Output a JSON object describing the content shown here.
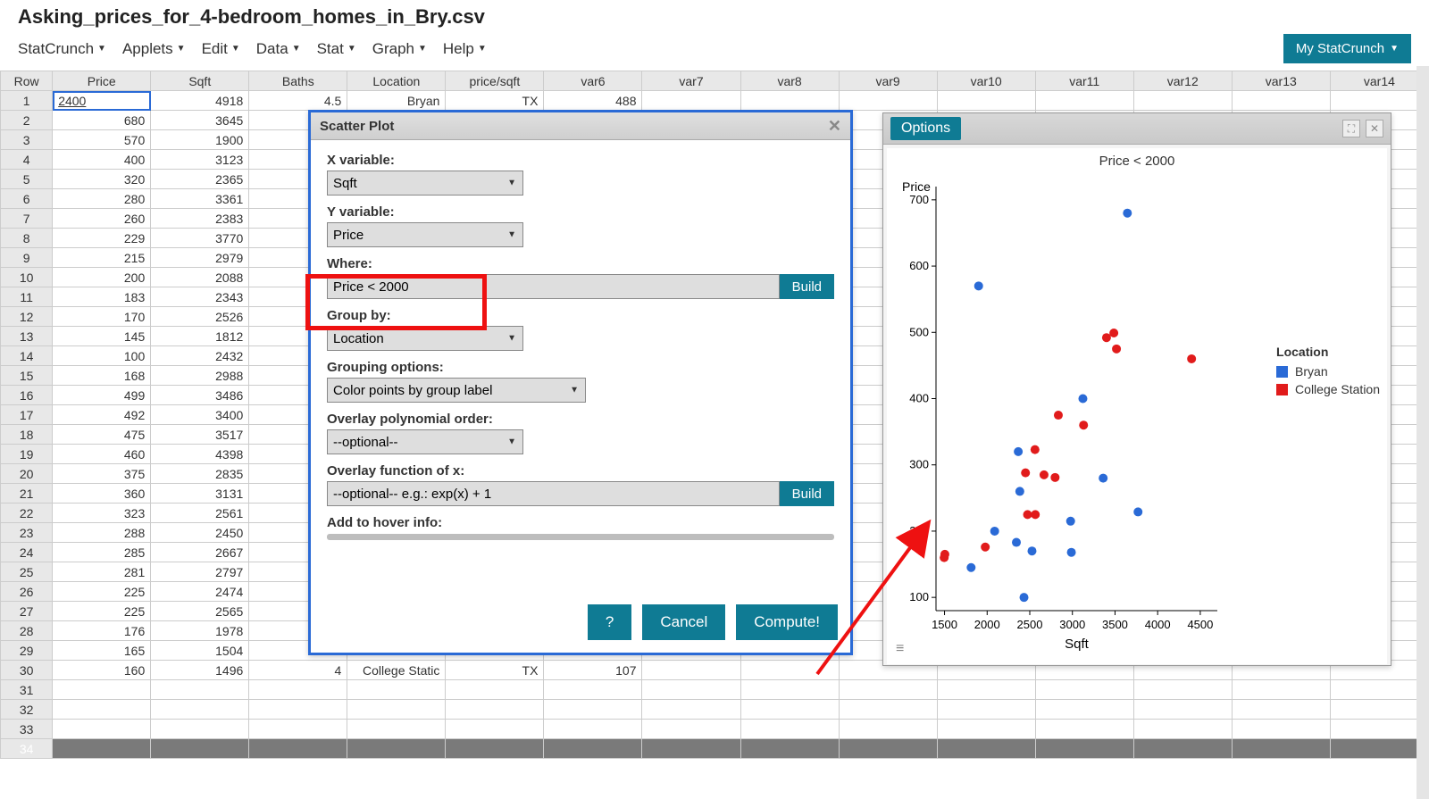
{
  "filename": "Asking_prices_for_4-bedroom_homes_in_Bry.csv",
  "menus": [
    "StatCrunch",
    "Applets",
    "Edit",
    "Data",
    "Stat",
    "Graph",
    "Help"
  ],
  "my_statcrunch": "My StatCrunch",
  "columns": [
    "Row",
    "Price",
    "Sqft",
    "Baths",
    "Location",
    "price/sqft",
    "var6",
    "var7",
    "var8",
    "var9",
    "var10",
    "var11",
    "var12",
    "var13",
    "var14"
  ],
  "rows": [
    {
      "n": 1,
      "Price": 2400,
      "Sqft": 4918,
      "Baths": 4.5,
      "Location": "Bryan",
      "price_sqft": "TX",
      "var6": 488
    },
    {
      "n": 2,
      "Price": 680,
      "Sqft": 3645
    },
    {
      "n": 3,
      "Price": 570,
      "Sqft": 1900
    },
    {
      "n": 4,
      "Price": 400,
      "Sqft": 3123
    },
    {
      "n": 5,
      "Price": 320,
      "Sqft": 2365
    },
    {
      "n": 6,
      "Price": 280,
      "Sqft": 3361
    },
    {
      "n": 7,
      "Price": 260,
      "Sqft": 2383
    },
    {
      "n": 8,
      "Price": 229,
      "Sqft": 3770
    },
    {
      "n": 9,
      "Price": 215,
      "Sqft": 2979
    },
    {
      "n": 10,
      "Price": 200,
      "Sqft": 2088
    },
    {
      "n": 11,
      "Price": 183,
      "Sqft": 2343
    },
    {
      "n": 12,
      "Price": 170,
      "Sqft": 2526
    },
    {
      "n": 13,
      "Price": 145,
      "Sqft": 1812
    },
    {
      "n": 14,
      "Price": 100,
      "Sqft": 2432
    },
    {
      "n": 15,
      "Price": 168,
      "Sqft": 2988
    },
    {
      "n": 16,
      "Price": 499,
      "Sqft": 3486
    },
    {
      "n": 17,
      "Price": 492,
      "Sqft": 3400
    },
    {
      "n": 18,
      "Price": 475,
      "Sqft": 3517
    },
    {
      "n": 19,
      "Price": 460,
      "Sqft": 4398
    },
    {
      "n": 20,
      "Price": 375,
      "Sqft": 2835
    },
    {
      "n": 21,
      "Price": 360,
      "Sqft": 3131
    },
    {
      "n": 22,
      "Price": 323,
      "Sqft": 2561
    },
    {
      "n": 23,
      "Price": 288,
      "Sqft": 2450
    },
    {
      "n": 24,
      "Price": 285,
      "Sqft": 2667
    },
    {
      "n": 25,
      "Price": 281,
      "Sqft": 2797
    },
    {
      "n": 26,
      "Price": 225,
      "Sqft": 2474
    },
    {
      "n": 27,
      "Price": 225,
      "Sqft": 2565
    },
    {
      "n": 28,
      "Price": 176,
      "Sqft": 1978
    },
    {
      "n": 29,
      "Price": 165,
      "Sqft": 1504
    },
    {
      "n": 30,
      "Price": 160,
      "Sqft": 1496,
      "Baths": 4,
      "Location": "College Static",
      "price_sqft": "TX",
      "var6": 107
    },
    {
      "n": 31
    },
    {
      "n": 32
    },
    {
      "n": 33
    },
    {
      "n": 34
    }
  ],
  "dialog": {
    "title": "Scatter Plot",
    "xvar_label": "X variable:",
    "xvar_value": "Sqft",
    "yvar_label": "Y variable:",
    "yvar_value": "Price",
    "where_label": "Where:",
    "where_value": "Price < 2000",
    "build": "Build",
    "groupby_label": "Group by:",
    "groupby_value": "Location",
    "groupopt_label": "Grouping options:",
    "groupopt_value": "Color points by group label",
    "poly_label": "Overlay polynomial order:",
    "poly_value": "--optional--",
    "fn_label": "Overlay function of x:",
    "fn_value": "--optional-- e.g.: exp(x) + 1",
    "hover_label": "Add to hover info:",
    "help": "?",
    "cancel": "Cancel",
    "compute": "Compute!"
  },
  "chart": {
    "options_label": "Options",
    "title": "Price < 2000",
    "ylabel": "Price",
    "xlabel": "Sqft",
    "legend_title": "Location",
    "legend": [
      {
        "label": "Bryan",
        "color": "#2a6ad6"
      },
      {
        "label": "College Station",
        "color": "#e11b1b"
      }
    ],
    "colors": {
      "bryan": "#2a6ad6",
      "college": "#e11b1b",
      "bg": "#ffffff",
      "axis": "#000000"
    },
    "xlim": [
      1400,
      4700
    ],
    "ylim": [
      80,
      720
    ],
    "xticks": [
      1500,
      2000,
      2500,
      3000,
      3500,
      4000,
      4500
    ],
    "yticks": [
      100,
      200,
      300,
      400,
      500,
      600,
      700
    ],
    "tick_fontsize": 13,
    "point_r": 5,
    "points": [
      {
        "x": 4918,
        "y": 2400,
        "g": "bryan",
        "hide": true
      },
      {
        "x": 3645,
        "y": 680,
        "g": "bryan"
      },
      {
        "x": 1900,
        "y": 570,
        "g": "bryan"
      },
      {
        "x": 3123,
        "y": 400,
        "g": "bryan"
      },
      {
        "x": 2365,
        "y": 320,
        "g": "bryan"
      },
      {
        "x": 3361,
        "y": 280,
        "g": "bryan"
      },
      {
        "x": 2383,
        "y": 260,
        "g": "bryan"
      },
      {
        "x": 3770,
        "y": 229,
        "g": "bryan"
      },
      {
        "x": 2979,
        "y": 215,
        "g": "bryan"
      },
      {
        "x": 2088,
        "y": 200,
        "g": "bryan"
      },
      {
        "x": 2343,
        "y": 183,
        "g": "bryan"
      },
      {
        "x": 2526,
        "y": 170,
        "g": "bryan"
      },
      {
        "x": 1812,
        "y": 145,
        "g": "bryan"
      },
      {
        "x": 2432,
        "y": 100,
        "g": "bryan"
      },
      {
        "x": 2988,
        "y": 168,
        "g": "bryan"
      },
      {
        "x": 3486,
        "y": 499,
        "g": "college"
      },
      {
        "x": 3400,
        "y": 492,
        "g": "college"
      },
      {
        "x": 3517,
        "y": 475,
        "g": "college"
      },
      {
        "x": 4398,
        "y": 460,
        "g": "college"
      },
      {
        "x": 2835,
        "y": 375,
        "g": "college"
      },
      {
        "x": 3131,
        "y": 360,
        "g": "college"
      },
      {
        "x": 2561,
        "y": 323,
        "g": "college"
      },
      {
        "x": 2450,
        "y": 288,
        "g": "college"
      },
      {
        "x": 2667,
        "y": 285,
        "g": "college"
      },
      {
        "x": 2797,
        "y": 281,
        "g": "college"
      },
      {
        "x": 2474,
        "y": 225,
        "g": "college"
      },
      {
        "x": 2565,
        "y": 225,
        "g": "college"
      },
      {
        "x": 1978,
        "y": 176,
        "g": "college"
      },
      {
        "x": 1504,
        "y": 165,
        "g": "college"
      },
      {
        "x": 1496,
        "y": 160,
        "g": "college"
      }
    ]
  }
}
